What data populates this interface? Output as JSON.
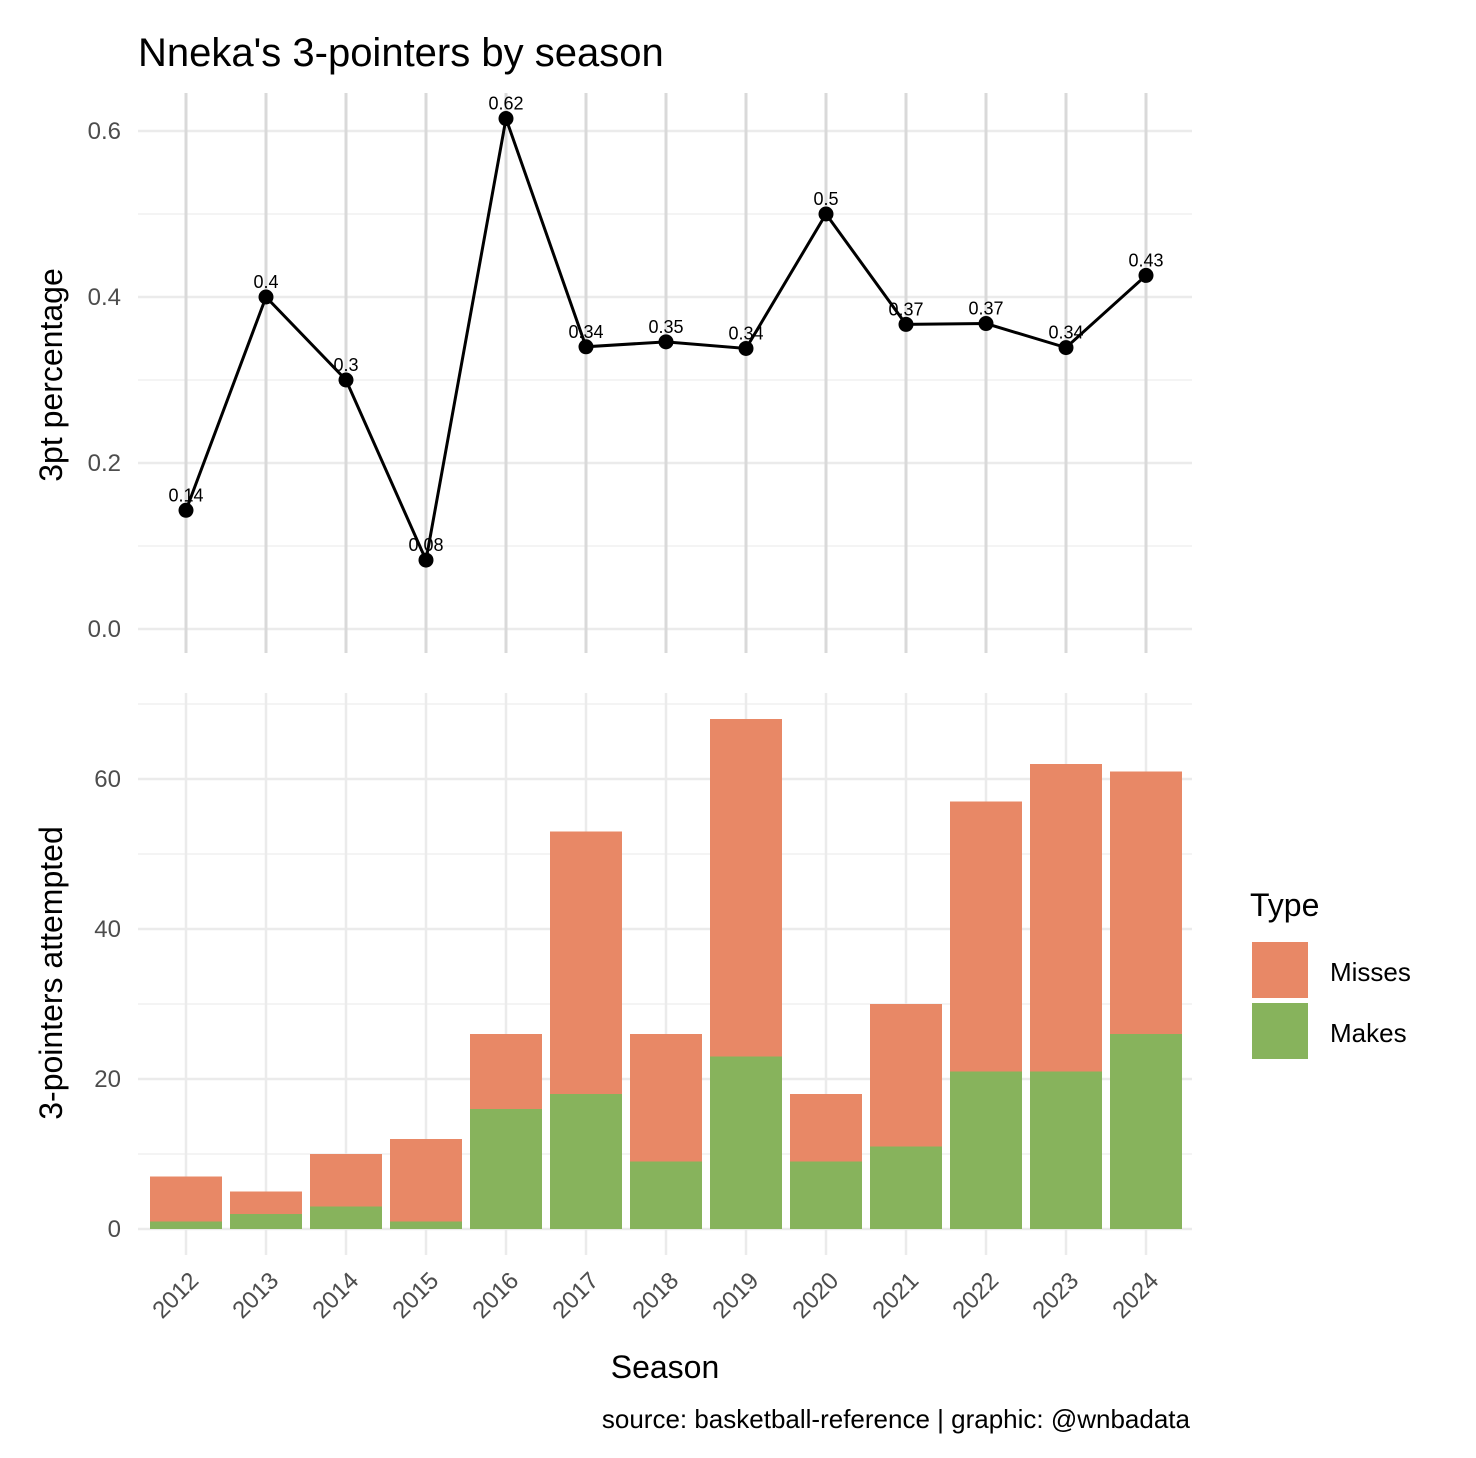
{
  "chart_data": [
    {
      "type": "line",
      "title": "Nneka's 3-pointers by season",
      "xlabel": "",
      "ylabel": "3pt percentage",
      "x": [
        "2012",
        "2013",
        "2014",
        "2015",
        "2016",
        "2017",
        "2018",
        "2019",
        "2020",
        "2021",
        "2022",
        "2023",
        "2024"
      ],
      "values": [
        0.143,
        0.4,
        0.3,
        0.083,
        0.615,
        0.34,
        0.346,
        0.338,
        0.5,
        0.367,
        0.368,
        0.339,
        0.426
      ],
      "data_labels": [
        "0.14",
        "0.4",
        "0.3",
        "0.08",
        "0.62",
        "0.34",
        "0.35",
        "0.34",
        "0.5",
        "0.37",
        "0.37",
        "0.34",
        "0.43"
      ],
      "yticks": [
        "0.0",
        "0.2",
        "0.4",
        "0.6"
      ],
      "ylim": [
        0,
        0.64
      ],
      "grid": true,
      "line_color": "#000000"
    },
    {
      "type": "bar",
      "stacked": true,
      "xlabel": "Season",
      "ylabel": "3-pointers attempted",
      "categories": [
        "2012",
        "2013",
        "2014",
        "2015",
        "2016",
        "2017",
        "2018",
        "2019",
        "2020",
        "2021",
        "2022",
        "2023",
        "2024"
      ],
      "series": [
        {
          "name": "Makes",
          "color": "#87b35c",
          "values": [
            1,
            2,
            3,
            1,
            16,
            18,
            9,
            23,
            9,
            11,
            21,
            21,
            26
          ]
        },
        {
          "name": "Misses",
          "color": "#e88866",
          "values": [
            6,
            3,
            7,
            11,
            10,
            35,
            17,
            45,
            9,
            19,
            36,
            41,
            35
          ]
        }
      ],
      "yticks": [
        "0",
        "20",
        "40",
        "60"
      ],
      "ylim": [
        0,
        70
      ],
      "grid": true,
      "legend": {
        "title": "Type",
        "placement": "right",
        "entries": [
          "Misses",
          "Makes"
        ]
      }
    }
  ],
  "caption": "source: basketball-reference | graphic: @wnbadata"
}
